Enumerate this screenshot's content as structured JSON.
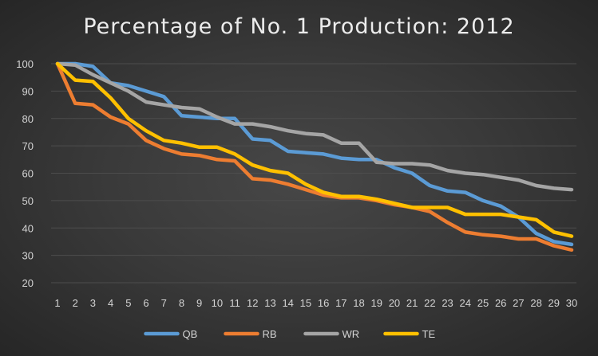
{
  "chart_data": {
    "type": "line",
    "title": "Percentage of No. 1 Production: 2012",
    "xlabel": "",
    "ylabel": "",
    "x": [
      1,
      2,
      3,
      4,
      5,
      6,
      7,
      8,
      9,
      10,
      11,
      12,
      13,
      14,
      15,
      16,
      17,
      18,
      19,
      20,
      21,
      22,
      23,
      24,
      25,
      26,
      27,
      28,
      29,
      30
    ],
    "ylim": [
      20,
      100
    ],
    "yticks": [
      20,
      30,
      40,
      50,
      60,
      70,
      80,
      90,
      100
    ],
    "grid": true,
    "legend_position": "bottom",
    "series": [
      {
        "name": "QB",
        "color": "#5b9bd5",
        "values": [
          100,
          100,
          99,
          93,
          92,
          90,
          88,
          81,
          80.5,
          80,
          80,
          72.5,
          72,
          68,
          67.5,
          67,
          65.5,
          65,
          65,
          62,
          60,
          55.5,
          53.5,
          53,
          50,
          48,
          44,
          38,
          35,
          34
        ]
      },
      {
        "name": "RB",
        "color": "#ed7d31",
        "values": [
          100,
          85.5,
          85,
          80.5,
          78,
          72,
          69,
          67,
          66.5,
          65,
          64.5,
          58,
          57.5,
          56,
          54,
          52,
          51,
          51,
          50,
          48.5,
          47.5,
          46,
          42,
          38.5,
          37.5,
          37,
          36,
          36,
          33.5,
          32
        ]
      },
      {
        "name": "WR",
        "color": "#a5a5a5",
        "values": [
          100,
          99.5,
          96,
          93,
          90,
          86,
          85,
          84,
          83.5,
          80.5,
          78,
          78,
          77,
          75.5,
          74.5,
          74,
          71,
          71,
          64,
          63.5,
          63.5,
          63,
          61,
          60,
          59.5,
          58.5,
          57.5,
          55.5,
          54.5,
          54
        ]
      },
      {
        "name": "TE",
        "color": "#ffc000",
        "values": [
          100,
          94,
          93.5,
          87.5,
          80,
          75.5,
          72,
          71,
          69.5,
          69.5,
          67,
          63,
          61,
          60,
          56,
          53,
          51.5,
          51.5,
          50.5,
          49,
          47.5,
          47.5,
          47.5,
          45,
          45,
          45,
          44,
          43,
          38.5,
          37
        ]
      }
    ]
  }
}
